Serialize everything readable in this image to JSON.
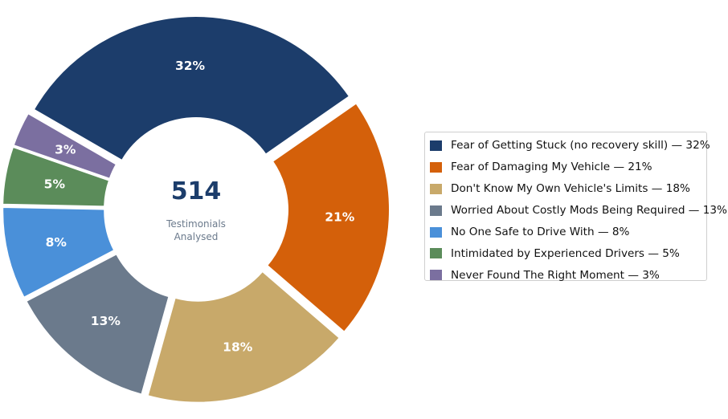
{
  "chart_data": {
    "type": "pie",
    "style": "donut",
    "center_total": "514",
    "center_caption_lines": [
      "Testimonials",
      "Analysed"
    ],
    "slices": [
      {
        "label": "Fear of Getting Stuck (no recovery skill)",
        "value": 32,
        "value_label": "32%",
        "color": "#1c3d6b"
      },
      {
        "label": "Fear of Damaging My Vehicle",
        "value": 21,
        "value_label": "21%",
        "color": "#d4600a"
      },
      {
        "label": "Don't Know My Own Vehicle's Limits",
        "value": 18,
        "value_label": "18%",
        "color": "#c8a96a"
      },
      {
        "label": "Worried About Costly Mods Being Required",
        "value": 13,
        "value_label": "13%",
        "color": "#6b7a8c"
      },
      {
        "label": "No One Safe to Drive With",
        "value": 8,
        "value_label": "8%",
        "color": "#4a90d9"
      },
      {
        "label": "Intimidated by Experienced Drivers",
        "value": 5,
        "value_label": "5%",
        "color": "#5b8c5a"
      },
      {
        "label": "Never Found The Right Moment",
        "value": 3,
        "value_label": "3%",
        "color": "#7b6fa0"
      }
    ],
    "legend_entries": [
      "Fear of Getting Stuck (no recovery skill)  —  32%",
      "Fear of Damaging My Vehicle  —  21%",
      "Don't Know My Own Vehicle's Limits  —  18%",
      "Worried About Costly Mods Being Required  —  13%",
      "No One Safe to Drive With  —  8%",
      "Intimidated by Experienced Drivers  —  5%",
      "Never Found The Right Moment  —  3%"
    ],
    "legend_position": "right"
  },
  "colors": {
    "center_total": "#1c3d6b",
    "center_caption": "#6b7a8c"
  }
}
